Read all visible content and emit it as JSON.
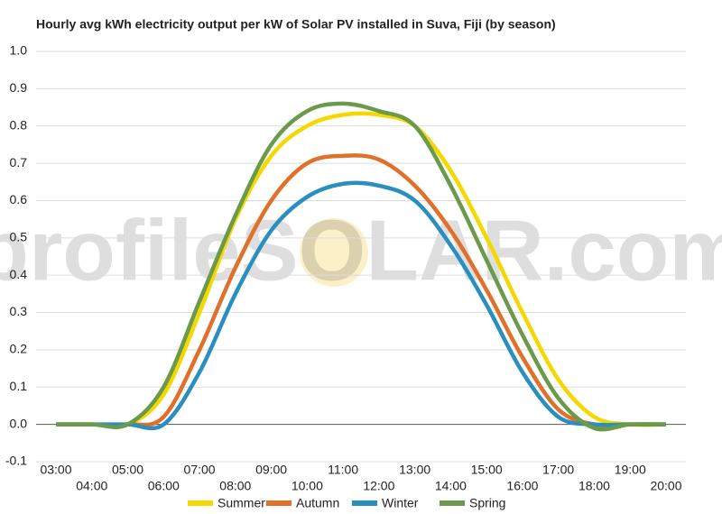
{
  "chart_data": {
    "type": "line",
    "title": "Hourly avg kWh electricity output per kW of Solar PV installed in Suva, Fiji (by season)",
    "watermark": "profileSOLAR.com",
    "categories": [
      "03:00",
      "04:00",
      "05:00",
      "06:00",
      "07:00",
      "08:00",
      "09:00",
      "10:00",
      "11:00",
      "12:00",
      "13:00",
      "14:00",
      "15:00",
      "16:00",
      "17:00",
      "18:00",
      "19:00",
      "20:00"
    ],
    "series": [
      {
        "name": "Summer",
        "color": "#f5d800",
        "values": [
          0,
          0,
          0,
          0.08,
          0.3,
          0.55,
          0.72,
          0.8,
          0.83,
          0.83,
          0.8,
          0.68,
          0.5,
          0.3,
          0.12,
          0.02,
          0,
          0
        ]
      },
      {
        "name": "Autumn",
        "color": "#e0702a",
        "values": [
          0,
          0,
          0,
          0.02,
          0.2,
          0.42,
          0.6,
          0.7,
          0.72,
          0.71,
          0.64,
          0.52,
          0.36,
          0.18,
          0.04,
          0,
          0,
          0
        ]
      },
      {
        "name": "Winter",
        "color": "#2a8fc0",
        "values": [
          0,
          0,
          0,
          0,
          0.14,
          0.35,
          0.52,
          0.61,
          0.645,
          0.64,
          0.6,
          0.48,
          0.32,
          0.14,
          0.02,
          0,
          0,
          0
        ]
      },
      {
        "name": "Spring",
        "color": "#6a9a4a",
        "values": [
          0,
          0,
          0,
          0.1,
          0.33,
          0.56,
          0.75,
          0.84,
          0.86,
          0.84,
          0.8,
          0.64,
          0.44,
          0.24,
          0.07,
          -0.01,
          0,
          0
        ]
      }
    ],
    "ylim": [
      -0.1,
      1.0
    ],
    "yticks": [
      -0.1,
      {
        "value": 0,
        "label": "0.0"
      },
      0.1,
      0.2,
      0.3,
      0.4,
      0.5,
      0.6,
      0.7,
      0.8,
      0.9,
      {
        "value": 1,
        "label": "1.0"
      }
    ],
    "grid": true
  }
}
